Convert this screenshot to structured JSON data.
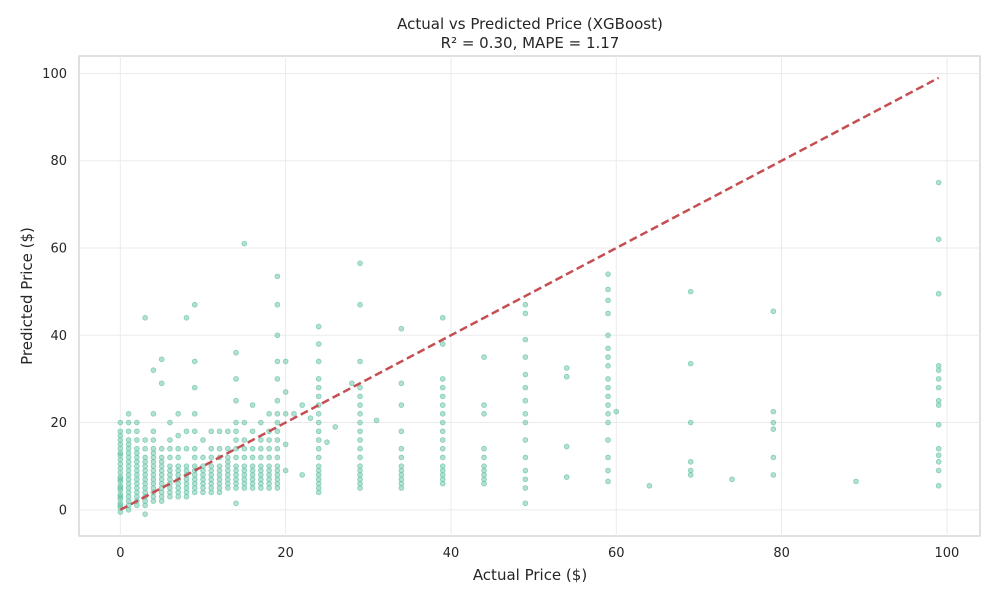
{
  "chart_data": {
    "type": "scatter",
    "title": "Actual vs Predicted Price (XGBoost)",
    "subtitle": "R² = 0.30, MAPE = 1.17",
    "xlabel": "Actual Price ($)",
    "ylabel": "Predicted Price ($)",
    "xlim": [
      -5,
      104
    ],
    "ylim": [
      -6,
      104
    ],
    "xticks": [
      0,
      20,
      40,
      60,
      80,
      100
    ],
    "yticks": [
      0,
      20,
      40,
      60,
      80,
      100
    ],
    "grid": true,
    "colors": {
      "points": "#66c2a5",
      "reference_line": "#c44e52"
    },
    "reference_line": {
      "x": [
        0,
        99
      ],
      "y": [
        0,
        99
      ],
      "style": "dashed"
    },
    "points": {
      "x": [
        0,
        0,
        0,
        0,
        0,
        0,
        0,
        0,
        0,
        0,
        0,
        0,
        0,
        0,
        0,
        0,
        0,
        0,
        0,
        0,
        0,
        0,
        0,
        0,
        0,
        1,
        1,
        1,
        1,
        1,
        1,
        1,
        1,
        1,
        1,
        1,
        1,
        1,
        1,
        1,
        1,
        1,
        1,
        1,
        1,
        2,
        2,
        2,
        2,
        2,
        2,
        2,
        2,
        2,
        2,
        2,
        2,
        2,
        2,
        2,
        2,
        2,
        3,
        3,
        3,
        3,
        3,
        3,
        3,
        3,
        3,
        3,
        3,
        3,
        3,
        3,
        3,
        3,
        4,
        4,
        4,
        4,
        4,
        4,
        4,
        4,
        4,
        4,
        4,
        4,
        4,
        4,
        4,
        4,
        4,
        5,
        5,
        5,
        5,
        5,
        5,
        5,
        5,
        5,
        5,
        5,
        5,
        5,
        5,
        6,
        6,
        6,
        6,
        6,
        6,
        6,
        6,
        6,
        6,
        6,
        6,
        7,
        7,
        7,
        7,
        7,
        7,
        7,
        7,
        7,
        7,
        7,
        7,
        8,
        8,
        8,
        8,
        8,
        8,
        8,
        8,
        8,
        8,
        8,
        9,
        9,
        9,
        9,
        9,
        9,
        9,
        9,
        9,
        9,
        9,
        9,
        9,
        9,
        10,
        10,
        10,
        10,
        10,
        10,
        10,
        10,
        10,
        11,
        11,
        11,
        11,
        11,
        11,
        11,
        11,
        11,
        11,
        12,
        12,
        12,
        12,
        12,
        12,
        12,
        12,
        12,
        12,
        13,
        13,
        13,
        13,
        13,
        13,
        13,
        13,
        13,
        13,
        14,
        14,
        14,
        14,
        14,
        14,
        14,
        14,
        14,
        14,
        14,
        14,
        14,
        14,
        14,
        15,
        15,
        15,
        15,
        15,
        15,
        15,
        15,
        15,
        15,
        15,
        16,
        16,
        16,
        16,
        16,
        16,
        16,
        16,
        16,
        16,
        17,
        17,
        17,
        17,
        17,
        17,
        17,
        17,
        17,
        17,
        18,
        18,
        18,
        18,
        18,
        18,
        18,
        18,
        18,
        18,
        18,
        19,
        19,
        19,
        19,
        19,
        19,
        19,
        19,
        19,
        19,
        19,
        19,
        19,
        19,
        19,
        19,
        19,
        19,
        20,
        20,
        20,
        20,
        20,
        21,
        22,
        22,
        23,
        24,
        24,
        24,
        24,
        24,
        24,
        24,
        24,
        24,
        24,
        24,
        24,
        24,
        24,
        24,
        24,
        24,
        24,
        24,
        24,
        25,
        26,
        28,
        29,
        29,
        29,
        29,
        29,
        29,
        29,
        29,
        29,
        29,
        29,
        29,
        29,
        29,
        29,
        29,
        29,
        29,
        31,
        34,
        34,
        34,
        34,
        34,
        34,
        34,
        34,
        34,
        34,
        34,
        34,
        39,
        39,
        39,
        39,
        39,
        39,
        39,
        39,
        39,
        39,
        39,
        39,
        39,
        39,
        39,
        39,
        39,
        44,
        44,
        44,
        44,
        44,
        44,
        44,
        44,
        44,
        44,
        49,
        49,
        49,
        49,
        49,
        49,
        49,
        49,
        49,
        49,
        49,
        49,
        49,
        49,
        49,
        54,
        54,
        54,
        54,
        59,
        59,
        59,
        59,
        59,
        59,
        59,
        59,
        59,
        59,
        59,
        59,
        59,
        59,
        59,
        59,
        59,
        59,
        60,
        64,
        69,
        69,
        69,
        69,
        69,
        69,
        74,
        79,
        79,
        79,
        79,
        79,
        79,
        89,
        99,
        99,
        99,
        99,
        99,
        99,
        99,
        99,
        99,
        99,
        99,
        99,
        99,
        99,
        99
      ],
      "y": [
        -0.5,
        0.5,
        1.5,
        2.5,
        3.5,
        4.5,
        5.5,
        6.5,
        7.5,
        8.5,
        9.5,
        10.5,
        11.5,
        12.5,
        13,
        14,
        15,
        16,
        17,
        18,
        20,
        1,
        3,
        5,
        7,
        0,
        1,
        2,
        3,
        4,
        5,
        6,
        7,
        8,
        9,
        10,
        11,
        12,
        13,
        14,
        15,
        16,
        18,
        20,
        22,
        1,
        2,
        3,
        4,
        5,
        6,
        7,
        8,
        9,
        10,
        11,
        12,
        13,
        14,
        16,
        18,
        20,
        -1,
        1,
        2,
        3,
        4,
        5,
        6,
        7,
        8,
        9,
        10,
        11,
        12,
        14,
        16,
        44,
        2,
        3,
        4,
        5,
        6,
        7,
        8,
        9,
        10,
        11,
        12,
        13,
        14,
        16,
        18,
        22,
        32,
        2,
        3,
        4,
        5,
        6,
        7,
        8,
        9,
        10,
        11,
        12,
        14,
        29,
        34.5,
        3,
        4,
        5,
        6,
        7,
        8,
        9,
        10,
        12,
        14,
        16,
        20,
        3,
        4,
        5,
        6,
        7,
        8,
        9,
        10,
        12,
        14,
        17,
        22,
        3,
        4,
        5,
        6,
        7,
        8,
        9,
        10,
        14,
        18,
        44,
        4,
        5,
        6,
        7,
        8,
        9,
        10,
        12,
        14,
        18,
        22,
        28,
        34,
        47,
        4,
        5,
        6,
        7,
        8,
        9,
        10,
        12,
        16,
        4,
        5,
        6,
        7,
        8,
        9,
        10,
        12,
        14,
        18,
        4,
        5,
        6,
        7,
        8,
        9,
        10,
        12,
        14,
        18,
        5,
        6,
        7,
        8,
        9,
        10,
        11,
        12,
        14,
        18,
        1.5,
        5,
        6,
        7,
        8,
        9,
        10,
        12,
        14,
        16,
        18,
        20,
        25,
        30,
        36,
        5,
        6,
        7,
        8,
        9,
        10,
        12,
        14,
        16,
        20,
        61,
        5,
        6,
        7,
        8,
        9,
        10,
        12,
        14,
        18,
        24,
        5,
        6,
        7,
        8,
        9,
        10,
        12,
        14,
        16,
        20,
        5,
        6,
        7,
        8,
        9,
        10,
        12,
        14,
        16,
        18,
        22,
        5,
        6,
        7,
        8,
        9,
        10,
        12,
        14,
        16,
        18,
        20,
        22,
        25,
        30,
        34,
        40,
        47,
        53.5,
        9,
        15,
        22,
        34,
        27,
        22,
        8,
        24,
        21,
        4,
        5,
        6,
        7,
        8,
        9,
        10,
        12,
        14,
        16,
        18,
        20,
        22,
        24,
        26,
        28,
        30,
        34,
        38,
        42,
        15.5,
        19,
        29,
        5,
        6,
        7,
        8,
        9,
        10,
        12,
        14,
        16,
        18,
        20,
        22,
        24,
        26,
        28,
        34,
        47,
        56.5,
        20.5,
        5,
        6,
        7,
        8,
        9,
        10,
        12,
        14,
        18,
        24,
        29,
        41.5,
        6,
        7,
        8,
        9,
        10,
        12,
        14,
        16,
        18,
        20,
        22,
        24,
        26,
        28,
        30,
        38,
        44,
        6,
        7,
        8,
        9,
        10,
        12,
        14,
        22,
        24,
        35,
        1.5,
        5,
        7,
        9,
        12,
        16,
        20,
        22,
        25,
        28,
        31,
        35,
        39,
        45,
        47,
        7.5,
        14.5,
        30.5,
        32.5,
        6.5,
        9,
        12,
        16,
        20,
        22,
        24,
        26,
        28,
        30,
        33,
        35,
        37,
        40,
        45,
        48,
        50.5,
        54,
        22.5,
        5.5,
        8,
        9,
        11,
        20,
        33.5,
        50,
        7,
        8,
        12,
        18.5,
        20,
        22.5,
        45.5,
        6.5,
        5.5,
        9,
        11,
        12.5,
        14,
        19.5,
        24,
        25,
        28,
        30,
        32,
        33,
        49.5,
        62,
        75
      ]
    }
  }
}
